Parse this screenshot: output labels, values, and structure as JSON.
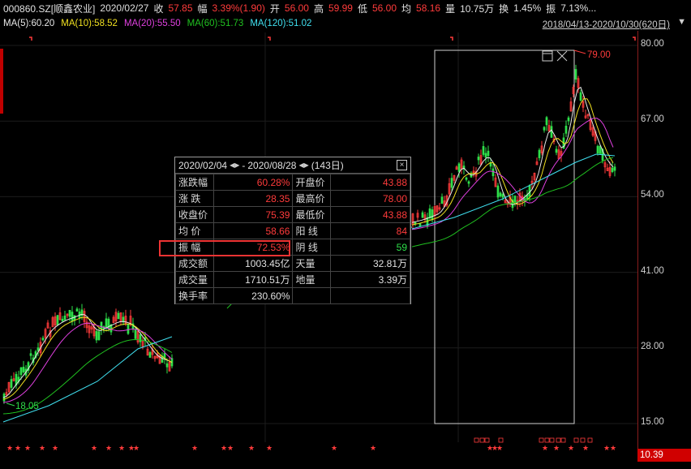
{
  "header": {
    "code": "000860.SZ[顺鑫农业]",
    "date": "2020/02/27",
    "close_label": "收",
    "close": "57.85",
    "amp_label": "幅",
    "amp": "3.39%(1.90)",
    "open_label": "开",
    "open": "56.00",
    "high_label": "高",
    "high": "59.99",
    "low_label": "低",
    "low": "56.00",
    "avg_label": "均",
    "avg": "58.16",
    "vol_label": "量",
    "vol": "10.75万",
    "turn_label": "换",
    "turn": "1.45%",
    "swing_label": "振",
    "swing": "7.13%..."
  },
  "ma": {
    "ma5": "MA(5):60.20",
    "ma10": "MA(10):58.52",
    "ma20": "MA(20):55.50",
    "ma60": "MA(60):51.73",
    "ma120": "MA(120):51.02"
  },
  "range": {
    "label": "2018/04/13-2020/10/30(620日)",
    "dropdown": "▼"
  },
  "yaxis": {
    "ticks": [
      "80.00",
      "67.00",
      "54.00",
      "41.00",
      "28.00",
      "15.00"
    ],
    "last_price": "10.39"
  },
  "annotations": {
    "high_marker": "79.00",
    "low_marker": "18.05"
  },
  "stats": {
    "start": "2020/02/04",
    "end": "2020/08/28",
    "sep": "-",
    "days": "(143日)",
    "rows": [
      {
        "l1": "涨跌幅",
        "v1": "60.28%",
        "c1": "r",
        "l2": "开盘价",
        "v2": "43.88",
        "c2": "r"
      },
      {
        "l1": "涨  跌",
        "v1": "28.35",
        "c1": "r",
        "l2": "最高价",
        "v2": "78.00",
        "c2": "r"
      },
      {
        "l1": "收盘价",
        "v1": "75.39",
        "c1": "r",
        "l2": "最低价",
        "v2": "43.88",
        "c2": "r"
      },
      {
        "l1": "均  价",
        "v1": "58.66",
        "c1": "r",
        "l2": "阳  线",
        "v2": "84",
        "c2": "r"
      },
      {
        "l1": "振  幅",
        "v1": "72.53%",
        "c1": "r",
        "l2": "阴  线",
        "v2": "59",
        "c2": "g"
      },
      {
        "l1": "成交额",
        "v1": "1003.45亿",
        "c1": "w",
        "l2": "天量",
        "v2": "32.81万",
        "c2": "w"
      },
      {
        "l1": "成交量",
        "v1": "1710.51万",
        "c1": "w",
        "l2": "地量",
        "v2": "3.39万",
        "c2": "w"
      },
      {
        "l1": "换手率",
        "v1": "230.60%",
        "c1": "w",
        "l2": "",
        "v2": "",
        "c2": "w"
      }
    ]
  },
  "colors": {
    "up": "#ff3b3b",
    "down": "#2ee04a",
    "ma5": "#e8e8e8",
    "ma10": "#f0e020",
    "ma20": "#e040e0",
    "ma60": "#20c020",
    "ma120": "#40e0f0"
  }
}
